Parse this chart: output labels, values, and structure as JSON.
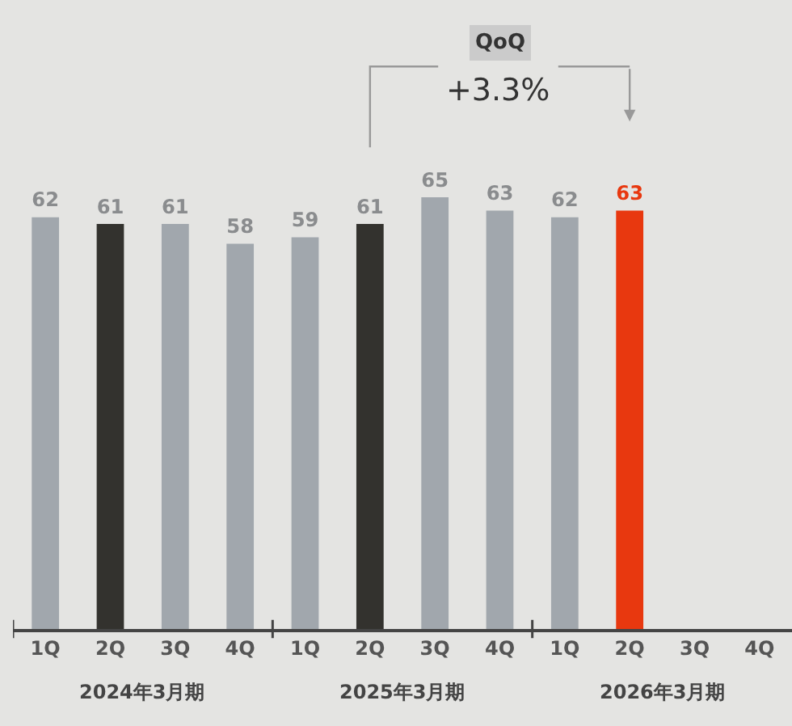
{
  "chart_data": {
    "type": "bar",
    "categories": [
      "1Q",
      "2Q",
      "3Q",
      "4Q",
      "1Q",
      "2Q",
      "3Q",
      "4Q",
      "1Q",
      "2Q",
      "3Q",
      "4Q"
    ],
    "values": [
      62,
      61,
      61,
      58,
      59,
      61,
      65,
      63,
      62,
      63,
      null,
      null
    ],
    "colors": [
      "#a1a7ad",
      "#33322e",
      "#a1a7ad",
      "#a1a7ad",
      "#a1a7ad",
      "#33322e",
      "#a1a7ad",
      "#a1a7ad",
      "#a1a7ad",
      "#e8380f",
      null,
      null
    ],
    "data_labels": true,
    "tick_labels": "x",
    "annotations": [
      "QoQ",
      "+3.3%",
      "2024年3月期",
      "2025年3月期",
      "2026年3月期"
    ]
  }
}
